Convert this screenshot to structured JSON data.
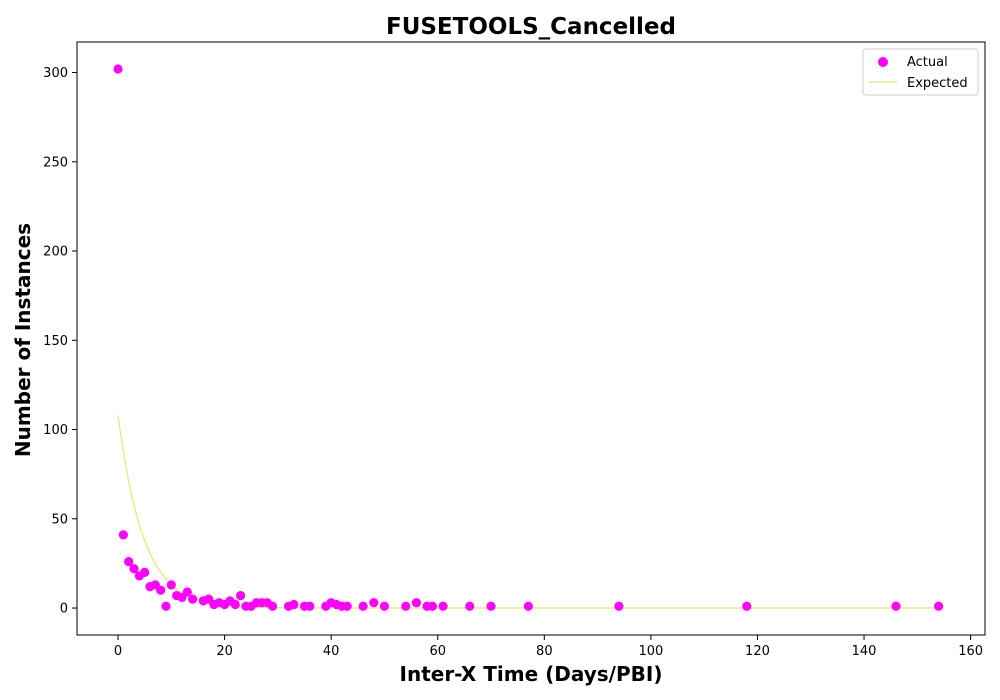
{
  "chart_data": {
    "type": "scatter",
    "title": "FUSETOOLS_Cancelled",
    "xlabel": "Inter-X Time (Days/PBI)",
    "ylabel": "Number of Instances",
    "xlim": [
      -7.7,
      162.7
    ],
    "ylim": [
      -15.1,
      317.1
    ],
    "x_ticks": [
      0,
      20,
      40,
      60,
      80,
      100,
      120,
      140,
      160
    ],
    "y_ticks": [
      0,
      50,
      100,
      150,
      200,
      250,
      300
    ],
    "grid": false,
    "legend_position": "top-right",
    "series": [
      {
        "name": "Actual",
        "kind": "scatter",
        "color": "#ff00ff",
        "x": [
          0,
          1,
          2,
          3,
          4,
          5,
          6,
          7,
          8,
          9,
          10,
          11,
          12,
          13,
          14,
          16,
          17,
          18,
          19,
          20,
          21,
          22,
          23,
          24,
          25,
          26,
          27,
          28,
          29,
          32,
          33,
          35,
          36,
          39,
          40,
          41,
          42,
          43,
          46,
          48,
          50,
          54,
          56,
          58,
          59,
          61,
          66,
          70,
          77,
          94,
          118,
          146,
          154
        ],
        "y": [
          302,
          41,
          26,
          22,
          18,
          20,
          12,
          13,
          10,
          1,
          13,
          7,
          6,
          9,
          5,
          4,
          5,
          2,
          3,
          2,
          4,
          2,
          7,
          1,
          1,
          3,
          3,
          3,
          1,
          1,
          2,
          1,
          1,
          1,
          3,
          2,
          1,
          1,
          1,
          3,
          1,
          1,
          3,
          1,
          1,
          1,
          1,
          1,
          1,
          1,
          1,
          1,
          1
        ]
      },
      {
        "name": "Expected",
        "kind": "line",
        "color": "#f0e68c",
        "model": "exponential",
        "a": 108,
        "b": 0.21,
        "x_range": [
          0,
          154
        ]
      }
    ]
  }
}
